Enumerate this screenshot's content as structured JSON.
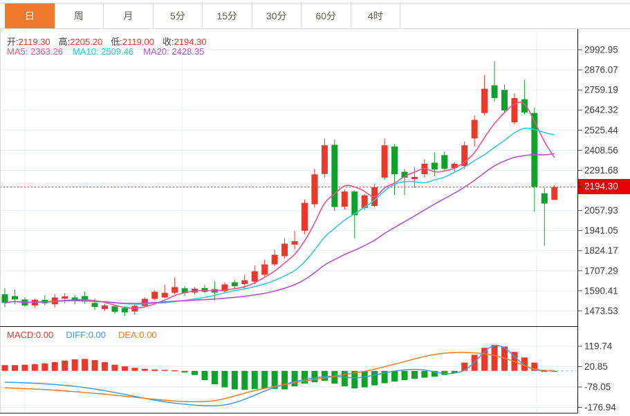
{
  "toolbar": {
    "tabs": [
      {
        "label": "日",
        "active": true
      },
      {
        "label": "周",
        "active": false
      },
      {
        "label": "月",
        "active": false
      },
      {
        "label": "5分",
        "active": false
      },
      {
        "label": "15分",
        "active": false
      },
      {
        "label": "30分",
        "active": false
      },
      {
        "label": "60分",
        "active": false
      },
      {
        "label": "4时",
        "active": false
      }
    ]
  },
  "quote_bar": {
    "open_label": "开:",
    "open": "2119.30",
    "high_label": "高:",
    "high": "2205.20",
    "low_label": "低:",
    "low": "2119.00",
    "close_label": "收:",
    "close": "2194.30"
  },
  "ma_bar": {
    "ma5_label": "MA5:",
    "ma5": "2363.26",
    "ma10_label": "MA10:",
    "ma10": "2509.46",
    "ma20_label": "MA20:",
    "ma20": "2428.35"
  },
  "price_axis": {
    "ticks": [
      "2992.95",
      "2876.07",
      "2759.19",
      "2642.32",
      "2525.44",
      "2408.56",
      "2291.68",
      "2057.93",
      "1941.05",
      "1824.17",
      "1707.29",
      "1590.41",
      "1473.53"
    ],
    "current_price": "2194.30"
  },
  "macd_panel_labels": {
    "macd_label": "MACD:",
    "macd_value": "0.00",
    "diff_label": "DIFF:",
    "diff_value": "0.00",
    "dea_label": "DEA:",
    "dea_value": "0.00",
    "ticks": [
      "119.74",
      "20.85",
      "-78.05",
      "-176.94"
    ]
  },
  "colors": {
    "up": "#e8392b",
    "down": "#10a12c",
    "ma5": "#f0508c",
    "ma10": "#36c6e3",
    "ma20": "#b054cc",
    "diff": "#3f9ae8",
    "dea": "#f08020",
    "tab_accent": "#ee7b30",
    "price_badge": "#e90000",
    "dotted_price_line": "#fb4f45",
    "grid": "#e6edf6",
    "axis_text": "#3c3c3c"
  },
  "chart_data": {
    "type": "candlestick",
    "convention": "red = up, green = down (Chinese convention)",
    "price_panel": {
      "y_ticks": [
        2992.95,
        2876.07,
        2759.19,
        2642.32,
        2525.44,
        2408.56,
        2291.68,
        2174.8,
        2057.93,
        1941.05,
        1824.17,
        1707.29,
        1590.41,
        1473.53
      ],
      "current_price": 2194.3,
      "ma_periods": [
        5,
        10,
        20
      ],
      "candles_ohlc": [
        [
          1570,
          1605,
          1495,
          1520
        ],
        [
          1560,
          1598,
          1512,
          1540
        ],
        [
          1540,
          1552,
          1498,
          1505
        ],
        [
          1505,
          1545,
          1492,
          1538
        ],
        [
          1538,
          1565,
          1505,
          1518
        ],
        [
          1512,
          1572,
          1492,
          1552
        ],
        [
          1545,
          1578,
          1518,
          1558
        ],
        [
          1552,
          1565,
          1512,
          1532
        ],
        [
          1560,
          1585,
          1515,
          1528
        ],
        [
          1520,
          1545,
          1480,
          1497
        ],
        [
          1485,
          1515,
          1472,
          1505
        ],
        [
          1500,
          1510,
          1458,
          1468
        ],
        [
          1490,
          1500,
          1445,
          1465
        ],
        [
          1470,
          1512,
          1452,
          1503
        ],
        [
          1503,
          1552,
          1494,
          1544
        ],
        [
          1544,
          1595,
          1536,
          1585
        ],
        [
          1552,
          1627,
          1546,
          1579
        ],
        [
          1579,
          1668,
          1570,
          1612
        ],
        [
          1605,
          1618,
          1560,
          1578
        ],
        [
          1580,
          1612,
          1570,
          1603
        ],
        [
          1607,
          1625,
          1575,
          1584
        ],
        [
          1600,
          1645,
          1535,
          1580
        ],
        [
          1588,
          1640,
          1578,
          1628
        ],
        [
          1640,
          1655,
          1600,
          1617
        ],
        [
          1630,
          1684,
          1604,
          1652
        ],
        [
          1644,
          1737,
          1630,
          1704
        ],
        [
          1684,
          1772,
          1668,
          1744
        ],
        [
          1744,
          1830,
          1732,
          1800
        ],
        [
          1792,
          1898,
          1778,
          1865
        ],
        [
          1859,
          1939,
          1832,
          1879
        ],
        [
          1940,
          2122,
          1920,
          2102
        ],
        [
          2094,
          2300,
          2074,
          2268
        ],
        [
          2270,
          2477,
          2250,
          2437
        ],
        [
          2440,
          2470,
          2055,
          2078
        ],
        [
          2080,
          2180,
          2064,
          2168
        ],
        [
          2168,
          2175,
          1895,
          2030
        ],
        [
          2073,
          2155,
          2060,
          2146
        ],
        [
          2084,
          2213,
          2078,
          2193
        ],
        [
          2249,
          2477,
          2236,
          2437
        ],
        [
          2430,
          2445,
          2147,
          2269
        ],
        [
          2283,
          2300,
          2147,
          2249
        ],
        [
          2240,
          2310,
          2190,
          2253
        ],
        [
          2269,
          2356,
          2249,
          2330
        ],
        [
          2336,
          2397,
          2256,
          2296
        ],
        [
          2380,
          2401,
          2290,
          2300
        ],
        [
          2305,
          2340,
          2285,
          2330
        ],
        [
          2316,
          2460,
          2300,
          2437
        ],
        [
          2477,
          2611,
          2430,
          2585
        ],
        [
          2625,
          2847,
          2611,
          2766
        ],
        [
          2786,
          2927,
          2692,
          2712
        ],
        [
          2759,
          2790,
          2630,
          2640
        ],
        [
          2571,
          2739,
          2558,
          2712
        ],
        [
          2705,
          2819,
          2616,
          2628
        ],
        [
          2625,
          2658,
          2050,
          2195
        ],
        [
          2158,
          2190,
          1852,
          2098
        ],
        [
          2119.3,
          2205.2,
          2119.0,
          2194.3
        ]
      ]
    },
    "macd_panel": {
      "y_ticks": [
        119.74,
        20.85,
        -78.05,
        -176.94
      ],
      "histogram": [
        28,
        28,
        30,
        32,
        36,
        42,
        50,
        56,
        58,
        52,
        42,
        30,
        22,
        15,
        10,
        7,
        5,
        3,
        -8,
        -20,
        -45,
        -65,
        -80,
        -90,
        -92,
        -88,
        -85,
        -88,
        -90,
        -75,
        -62,
        -55,
        -48,
        -62,
        -75,
        -85,
        -80,
        -70,
        -60,
        -52,
        -45,
        -38,
        -33,
        -28,
        -20,
        -10,
        40,
        78,
        112,
        126,
        118,
        92,
        65,
        40,
        -5,
        -4
      ],
      "diff": [
        -55,
        -56,
        -58,
        -60,
        -63,
        -66,
        -70,
        -75,
        -81,
        -88,
        -96,
        -105,
        -114,
        -124,
        -133,
        -142,
        -150,
        -157,
        -162,
        -166,
        -169,
        -170,
        -166,
        -155,
        -138,
        -118,
        -98,
        -80,
        -65,
        -52,
        -42,
        -34,
        -28,
        -26,
        -30,
        -35,
        -30,
        -20,
        -10,
        0,
        5,
        8,
        5,
        -5,
        -15,
        -12,
        0,
        40,
        95,
        128,
        115,
        70,
        25,
        5,
        0,
        0
      ],
      "dea": [
        -82,
        -84,
        -86,
        -88,
        -91,
        -94,
        -97,
        -101,
        -105,
        -109,
        -113,
        -118,
        -123,
        -128,
        -133,
        -138,
        -142,
        -146,
        -149,
        -150,
        -149,
        -145,
        -135,
        -122,
        -108,
        -95,
        -85,
        -75,
        -66,
        -58,
        -50,
        -42,
        -34,
        -26,
        -18,
        -10,
        -2,
        8,
        20,
        32,
        45,
        58,
        70,
        80,
        86,
        89,
        90,
        88,
        83,
        75,
        62,
        45,
        25,
        8,
        2,
        2
      ]
    }
  }
}
